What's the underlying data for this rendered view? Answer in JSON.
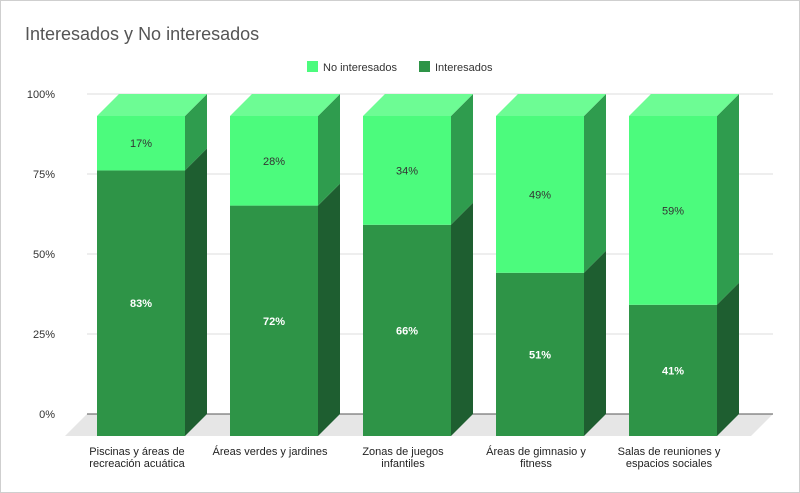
{
  "chart_data": {
    "type": "bar",
    "stacked": true,
    "three_d": true,
    "title": "Interesados y No interesados",
    "categories": [
      [
        "Piscinas y áreas de",
        "recreación acuática"
      ],
      [
        "Áreas verdes y jardines"
      ],
      [
        "Zonas de juegos",
        "infantiles"
      ],
      [
        "Áreas de gimnasio y",
        "fitness"
      ],
      [
        "Salas de reuniones y",
        "espacios sociales"
      ]
    ],
    "series": [
      {
        "name": "Interesados",
        "values": [
          83,
          72,
          66,
          51,
          41
        ],
        "labels": [
          "83%",
          "72%",
          "66%",
          "51%",
          "41%"
        ],
        "color": "#2e9447",
        "side_color": "#1e5e30",
        "top_color": "#3fa85a"
      },
      {
        "name": "No interesados",
        "values": [
          17,
          28,
          34,
          49,
          59
        ],
        "labels": [
          "17%",
          "28%",
          "34%",
          "49%",
          "59%"
        ],
        "color": "#4cfb7d",
        "side_color": "#2f9c4e",
        "top_color": "#6dfc94"
      }
    ],
    "legend": {
      "position": "top",
      "order": [
        "No interesados",
        "Interesados"
      ]
    },
    "yaxis": {
      "ticks": [
        "0%",
        "25%",
        "50%",
        "75%",
        "100%"
      ],
      "ylim": [
        0,
        100
      ]
    },
    "grid": true
  }
}
